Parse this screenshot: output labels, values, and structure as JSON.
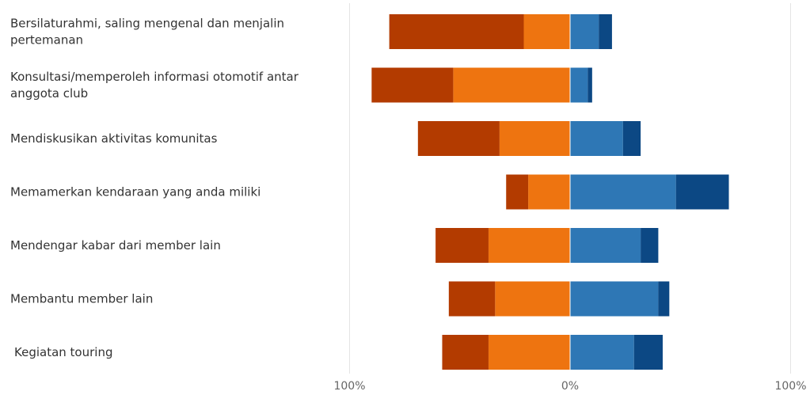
{
  "chart_data": {
    "type": "bar",
    "orientation": "horizontal",
    "stacking": "diverging",
    "categories": [
      "Bersilaturahmi, saling mengenal dan menjalin pertemanan",
      "Konsultasi/memperoleh informasi otomotif antar anggota club",
      "Mendiskusikan aktivitas komunitas",
      "Memamerkan kendaraan yang anda miliki",
      "Mendengar kabar dari member lain",
      "Membantu member lain",
      "Kegiatan touring"
    ],
    "series": [
      {
        "side": "negative",
        "color": "#B33B00",
        "values": [
          61,
          37,
          37,
          10,
          24,
          21,
          21
        ]
      },
      {
        "side": "negative",
        "color": "#EE7410",
        "values": [
          21,
          53,
          32,
          19,
          37,
          34,
          37
        ]
      },
      {
        "side": "positive",
        "color": "#2E77B5",
        "values": [
          13,
          8,
          24,
          48,
          32,
          40,
          29
        ]
      },
      {
        "side": "positive",
        "color": "#0C4884",
        "values": [
          6,
          2,
          8,
          24,
          8,
          5,
          13
        ]
      }
    ],
    "xlim": [
      -100,
      100
    ],
    "ticks": [
      {
        "value": -100,
        "label": "100%"
      },
      {
        "value": 0,
        "label": "0%"
      },
      {
        "value": 100,
        "label": "100%"
      }
    ],
    "grid": true,
    "legend": "none"
  }
}
